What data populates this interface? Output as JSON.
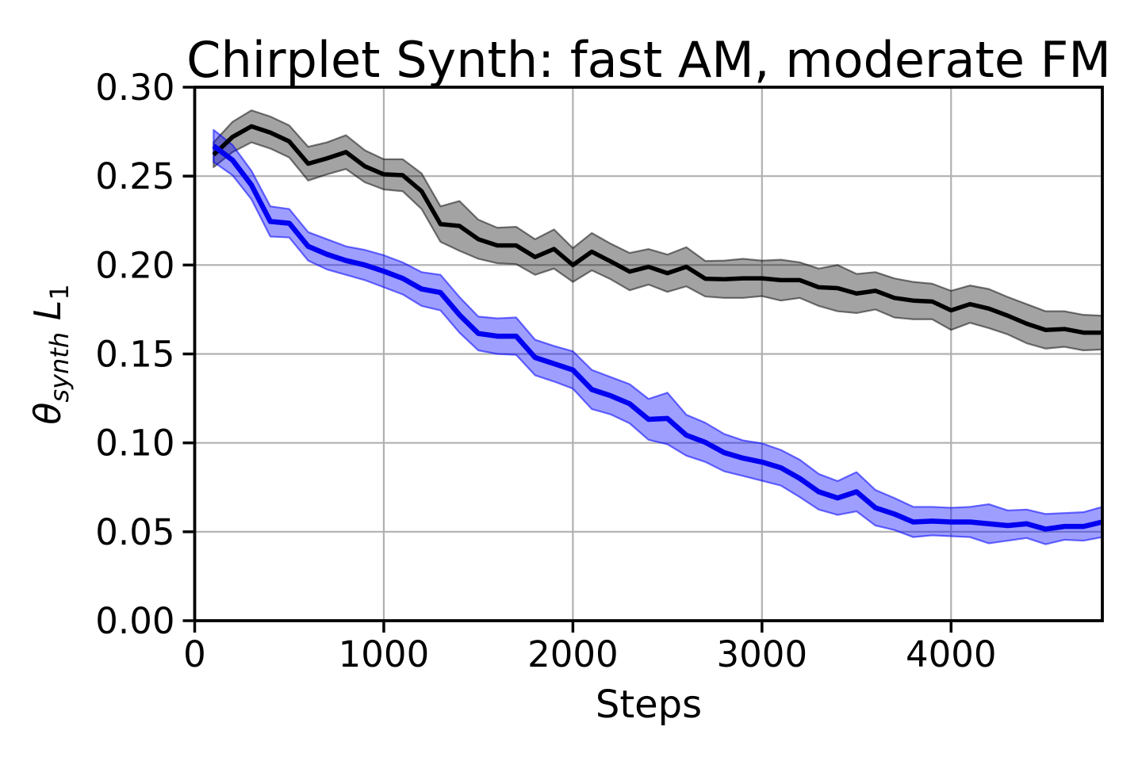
{
  "figure": {
    "title": "Chirplet Synth: fast AM, moderate FM",
    "xlabel": "Steps"
  },
  "chart_data": {
    "type": "line",
    "title": "Chirplet Synth: fast AM, moderate FM",
    "xlabel": "Steps",
    "ylabel": "theta_synth L1",
    "ylabel_parts": [
      {
        "text": "θ",
        "sub": false,
        "italic": true
      },
      {
        "text": "synth",
        "sub": true,
        "italic": true
      },
      {
        "text": " L",
        "sub": false,
        "italic": true
      },
      {
        "text": "1",
        "sub": true,
        "italic": false
      }
    ],
    "xlim": [
      0,
      4800
    ],
    "ylim": [
      0.0,
      0.3
    ],
    "grid": true,
    "grid_color": "#b0b0b0",
    "legend": "none",
    "xticks": [
      {
        "value": 0,
        "label": "0"
      },
      {
        "value": 1000,
        "label": "1000"
      },
      {
        "value": 2000,
        "label": "2000"
      },
      {
        "value": 3000,
        "label": "3000"
      },
      {
        "value": 4000,
        "label": "4000"
      }
    ],
    "yticks": [
      {
        "value": 0.0,
        "label": "0.00"
      },
      {
        "value": 0.05,
        "label": "0.05"
      },
      {
        "value": 0.1,
        "label": "0.10"
      },
      {
        "value": 0.15,
        "label": "0.15"
      },
      {
        "value": 0.2,
        "label": "0.20"
      },
      {
        "value": 0.25,
        "label": "0.25"
      },
      {
        "value": 0.3,
        "label": "0.30"
      }
    ],
    "x": [
      100,
      200,
      300,
      400,
      500,
      600,
      700,
      800,
      900,
      1000,
      1100,
      1200,
      1300,
      1400,
      1500,
      1600,
      1700,
      1800,
      1900,
      2000,
      2100,
      2200,
      2300,
      2400,
      2500,
      2600,
      2700,
      2800,
      2900,
      3000,
      3100,
      3200,
      3300,
      3400,
      3500,
      3600,
      3700,
      3800,
      3900,
      4000,
      4100,
      4200,
      4300,
      4400,
      4500,
      4600,
      4700,
      4800
    ],
    "series": [
      {
        "name": "black-series",
        "color": "#000000",
        "line_width": 5.5,
        "band_fill": "#000000",
        "band_fill_opacity": 0.36,
        "band_edge_opacity": 0.5,
        "values": [
          0.262,
          0.272,
          0.278,
          0.2745,
          0.2695,
          0.257,
          0.26,
          0.2635,
          0.2555,
          0.251,
          0.2505,
          0.2415,
          0.223,
          0.222,
          0.2145,
          0.211,
          0.211,
          0.2045,
          0.209,
          0.2,
          0.2075,
          0.202,
          0.1963,
          0.199,
          0.1954,
          0.199,
          0.1923,
          0.192,
          0.1925,
          0.1925,
          0.1915,
          0.1915,
          0.1875,
          0.187,
          0.184,
          0.1855,
          0.1815,
          0.18,
          0.1795,
          0.1745,
          0.178,
          0.1755,
          0.1715,
          0.167,
          0.1635,
          0.164,
          0.162,
          0.162
        ],
        "band": [
          0.007,
          0.0085,
          0.009,
          0.009,
          0.009,
          0.0095,
          0.009,
          0.0095,
          0.009,
          0.0085,
          0.009,
          0.01,
          0.01,
          0.014,
          0.011,
          0.01,
          0.0105,
          0.01,
          0.011,
          0.0095,
          0.0105,
          0.01,
          0.0105,
          0.01,
          0.0105,
          0.011,
          0.01,
          0.0105,
          0.011,
          0.01,
          0.0115,
          0.01,
          0.0105,
          0.013,
          0.011,
          0.0105,
          0.011,
          0.0105,
          0.01,
          0.011,
          0.0105,
          0.011,
          0.0105,
          0.011,
          0.0105,
          0.01,
          0.01,
          0.0095
        ]
      },
      {
        "name": "blue-series",
        "color": "#0202f0",
        "line_width": 6.5,
        "band_fill": "#0000ff",
        "band_fill_opacity": 0.38,
        "band_edge_opacity": 0.55,
        "values": [
          0.267,
          0.259,
          0.245,
          0.2245,
          0.2235,
          0.2105,
          0.206,
          0.2025,
          0.2,
          0.1965,
          0.1925,
          0.1865,
          0.1845,
          0.172,
          0.1615,
          0.16,
          0.16,
          0.148,
          0.1445,
          0.141,
          0.13,
          0.1265,
          0.122,
          0.1132,
          0.1137,
          0.1043,
          0.1003,
          0.0945,
          0.0914,
          0.0892,
          0.086,
          0.08,
          0.0725,
          0.069,
          0.0725,
          0.0635,
          0.06,
          0.0555,
          0.056,
          0.0555,
          0.0555,
          0.0545,
          0.0535,
          0.0545,
          0.0515,
          0.053,
          0.053,
          0.0555
        ],
        "band": [
          0.009,
          0.0085,
          0.008,
          0.0085,
          0.008,
          0.008,
          0.0085,
          0.008,
          0.0085,
          0.009,
          0.009,
          0.0095,
          0.01,
          0.01,
          0.0095,
          0.01,
          0.0105,
          0.01,
          0.01,
          0.0105,
          0.011,
          0.0105,
          0.011,
          0.0115,
          0.0145,
          0.0115,
          0.011,
          0.0105,
          0.01,
          0.0105,
          0.01,
          0.0105,
          0.01,
          0.0095,
          0.011,
          0.01,
          0.009,
          0.0085,
          0.008,
          0.008,
          0.0085,
          0.011,
          0.0085,
          0.008,
          0.0085,
          0.0075,
          0.008,
          0.0085
        ]
      }
    ],
    "axis_color": "#000000",
    "background": "#ffffff"
  }
}
